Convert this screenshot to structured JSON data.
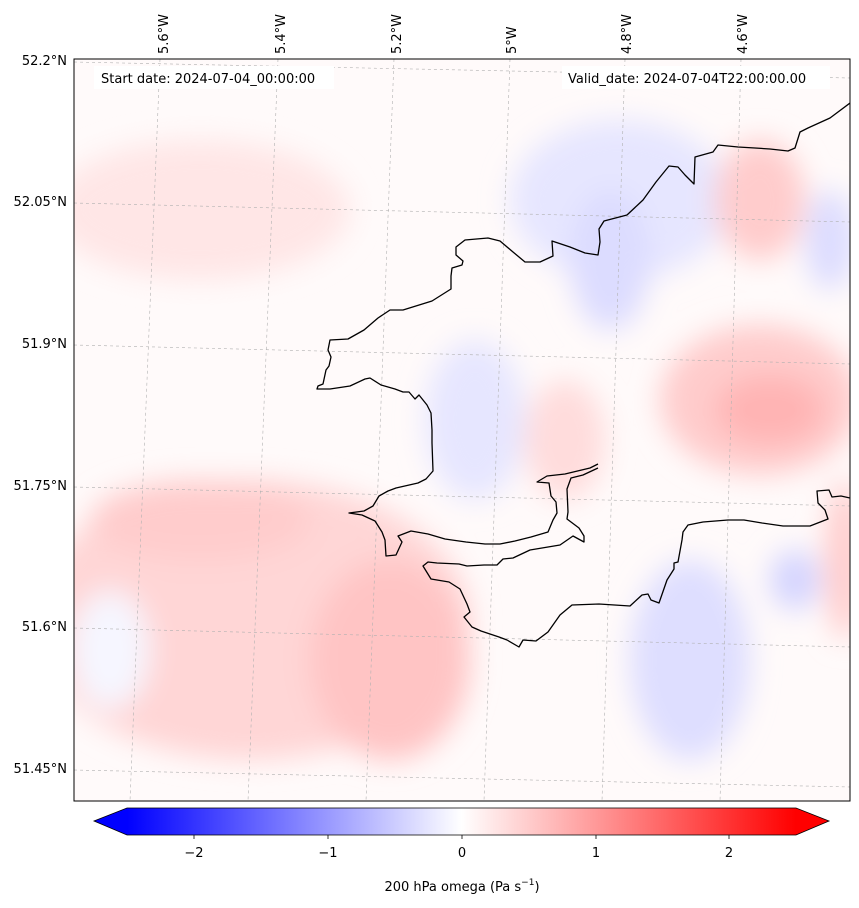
{
  "map": {
    "start_date": "Start date: 2024-07-04_00:00:00",
    "valid_date": "Valid_date: 2024-07-04T22:00:00.00",
    "lon_ticks": [
      "5.6°W",
      "5.4°W",
      "5.2°W",
      "5°W",
      "4.8°W",
      "4.6°W"
    ],
    "lat_ticks": [
      "52.2°N",
      "52.05°N",
      "51.9°N",
      "51.75°N",
      "51.6°N",
      "51.45°N"
    ],
    "colormap": {
      "negative": "#0000ff",
      "zero": "#ffffff",
      "positive": "#ff0000"
    },
    "coastline_color": "#000000",
    "gridlines": true,
    "field": "200 hPa omega"
  },
  "colorbar": {
    "ticks": [
      "−2",
      "−1",
      "0",
      "1",
      "2"
    ],
    "range": [
      -2.5,
      2.5
    ],
    "label_main": "200 hPa omega (Pa s",
    "label_exp": "−1",
    "label_close": ")"
  }
}
